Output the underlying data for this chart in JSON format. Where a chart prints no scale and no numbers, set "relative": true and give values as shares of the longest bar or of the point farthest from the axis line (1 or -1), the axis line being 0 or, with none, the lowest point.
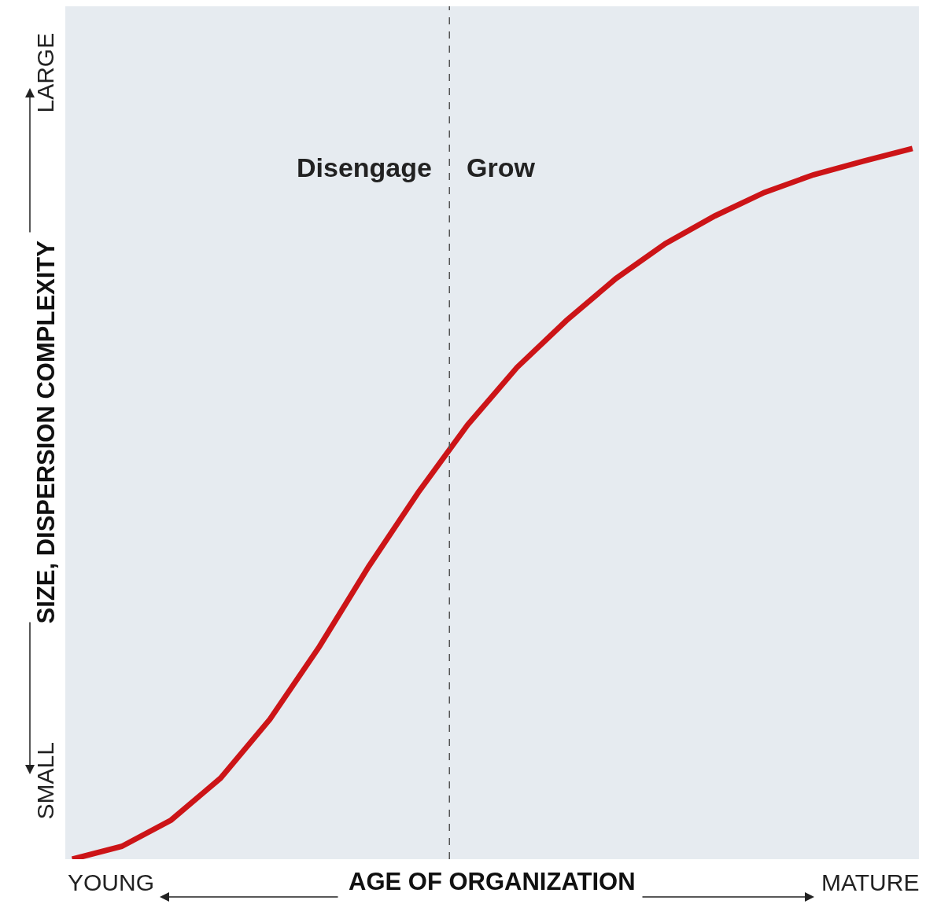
{
  "chart_data": {
    "type": "line",
    "relative": true,
    "xlabel": "AGE OF ORGANIZATION",
    "ylabel": "SIZE, DISPERSION COMPLEXITY",
    "categories": [
      null,
      null,
      null,
      null,
      null,
      null,
      null,
      null,
      null,
      null,
      null,
      null,
      null,
      null,
      null,
      null,
      null,
      null
    ],
    "series": [
      {
        "color": "#cc1417",
        "values": [
          0,
          0.018,
          0.055,
          0.114,
          0.197,
          0.299,
          0.412,
          0.516,
          0.611,
          0.692,
          0.758,
          0.817,
          0.866,
          0.905,
          0.938,
          0.963,
          0.982,
          1.0
        ]
      }
    ],
    "annotations": [
      "Disengage",
      "Grow",
      "YOUNG",
      "MATURE",
      "SMALL",
      "LARGE"
    ],
    "grid": false,
    "marker": "none",
    "line_style": "solid"
  }
}
